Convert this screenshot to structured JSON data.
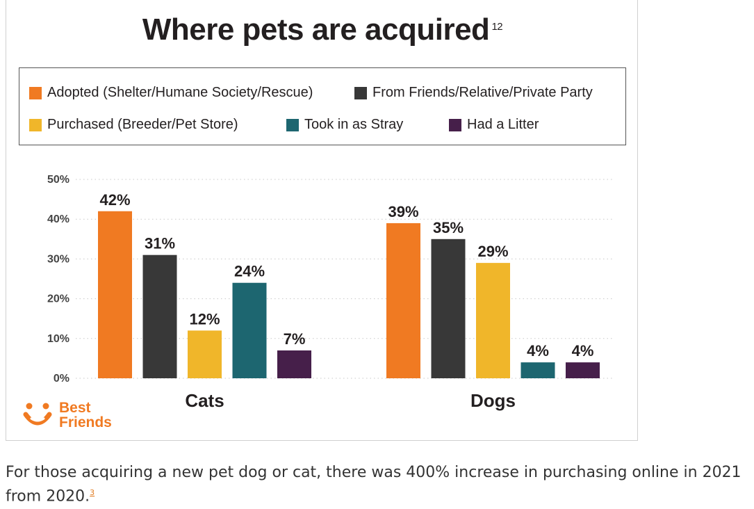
{
  "figure": {
    "title": "Where pets are acquired",
    "title_footnote": "12"
  },
  "legend": {
    "items": [
      {
        "label": "Adopted (Shelter/Humane Society/Rescue)",
        "color": "#f07a22"
      },
      {
        "label": "From Friends/Relative/Private Party",
        "color": "#383838"
      },
      {
        "label": "Purchased (Breeder/Pet Store)",
        "color": "#f0b62a"
      },
      {
        "label": "Took in as Stray",
        "color": "#1d6670"
      },
      {
        "label": "Had a Litter",
        "color": "#461f4a"
      }
    ]
  },
  "chart_data": {
    "type": "bar",
    "title": "Where pets are acquired",
    "categories": [
      "Cats",
      "Dogs"
    ],
    "series": [
      {
        "name": "Adopted (Shelter/Humane Society/Rescue)",
        "color": "#f07a22",
        "values": [
          42,
          39
        ],
        "labels": [
          "42%",
          "39%"
        ]
      },
      {
        "name": "From Friends/Relative/Private Party",
        "color": "#383838",
        "values": [
          31,
          35
        ],
        "labels": [
          "31%",
          "35%"
        ]
      },
      {
        "name": "Purchased (Breeder/Pet Store)",
        "color": "#f0b62a",
        "values": [
          12,
          29
        ],
        "labels": [
          "12%",
          "29%"
        ]
      },
      {
        "name": "Took in as Stray",
        "color": "#1d6670",
        "values": [
          24,
          4
        ],
        "labels": [
          "24%",
          "4%"
        ]
      },
      {
        "name": "Had a Litter",
        "color": "#461f4a",
        "values": [
          7,
          4
        ],
        "labels": [
          "7%",
          "4%"
        ]
      }
    ],
    "ylim": [
      0,
      50
    ],
    "yticks": [
      "0%",
      "10%",
      "20%",
      "30%",
      "40%",
      "50%"
    ],
    "grid": true,
    "legend_position": "top"
  },
  "logo": {
    "line1": "Best",
    "line2": "Friends",
    "icon": "best-friends-halo-dog-icon",
    "color": "#f07a22"
  },
  "caption": {
    "text": "For those acquiring a new pet dog or cat, there was 400% increase in purchasing online in 2021 from 2020.",
    "footnote": "3",
    "link_color": "#e07a1f"
  }
}
